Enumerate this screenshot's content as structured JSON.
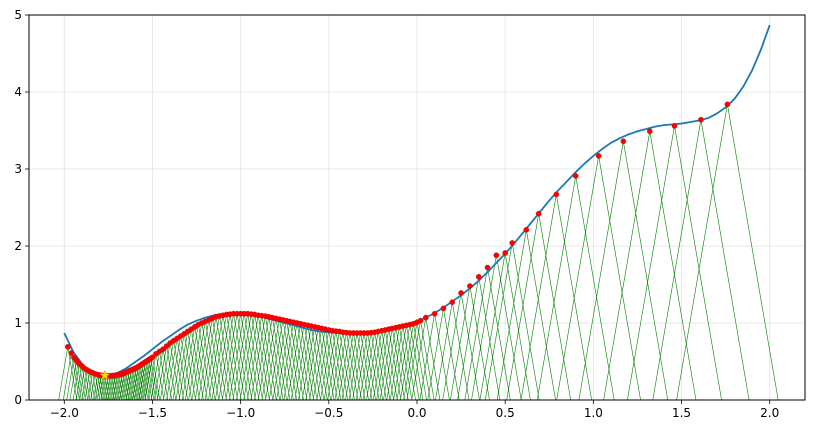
{
  "chart_data": {
    "type": "line",
    "title": "",
    "xlabel": "",
    "ylabel": "",
    "xlim": [
      -2.2,
      2.2
    ],
    "ylim": [
      0,
      5
    ],
    "grid": true,
    "legend": "none",
    "x_ticks": [
      -2.0,
      -1.5,
      -1.0,
      -0.5,
      0.0,
      0.5,
      1.0,
      1.5,
      2.0
    ],
    "x_tick_labels": [
      "−2.0",
      "−1.5",
      "−1.0",
      "−0.5",
      "0.0",
      "0.5",
      "1.0",
      "1.5",
      "2.0"
    ],
    "y_ticks": [
      0,
      1,
      2,
      3,
      4,
      5
    ],
    "y_tick_labels": [
      "0",
      "1",
      "2",
      "3",
      "4",
      "5"
    ],
    "colors": {
      "curve": "#1f77b4",
      "points": "#ff0000",
      "point_edge": "#cc0000",
      "lines": "#008000",
      "star": "#ffd700",
      "grid": "#b0b0b0"
    },
    "series": [
      {
        "kind": "curve",
        "x": [
          -2.0,
          -1.95,
          -1.9,
          -1.85,
          -1.8,
          -1.75,
          -1.7,
          -1.65,
          -1.6,
          -1.55,
          -1.5,
          -1.45,
          -1.4,
          -1.35,
          -1.3,
          -1.25,
          -1.2,
          -1.15,
          -1.1,
          -1.05,
          -1.0,
          -0.95,
          -0.9,
          -0.85,
          -0.8,
          -0.75,
          -0.7,
          -0.65,
          -0.6,
          -0.55,
          -0.5,
          -0.45,
          -0.4,
          -0.35,
          -0.3,
          -0.25,
          -0.2,
          -0.15,
          -0.1,
          -0.05,
          0.0,
          0.05,
          0.1,
          0.15,
          0.2,
          0.25,
          0.3,
          0.35,
          0.4,
          0.45,
          0.5,
          0.55,
          0.6,
          0.65,
          0.7,
          0.75,
          0.8,
          0.85,
          0.9,
          0.95,
          1.0,
          1.05,
          1.1,
          1.15,
          1.2,
          1.25,
          1.3,
          1.35,
          1.4,
          1.45,
          1.5,
          1.55,
          1.6,
          1.65,
          1.7,
          1.75,
          1.8,
          1.85,
          1.9,
          1.95,
          2.0
        ],
        "y": [
          0.87,
          0.63,
          0.47,
          0.36,
          0.32,
          0.32,
          0.35,
          0.41,
          0.49,
          0.57,
          0.66,
          0.75,
          0.83,
          0.91,
          0.98,
          1.03,
          1.07,
          1.1,
          1.12,
          1.12,
          1.12,
          1.11,
          1.09,
          1.06,
          1.03,
          1.0,
          0.97,
          0.94,
          0.91,
          0.89,
          0.88,
          0.87,
          0.87,
          0.87,
          0.87,
          0.88,
          0.9,
          0.92,
          0.95,
          0.98,
          1.02,
          1.07,
          1.13,
          1.2,
          1.28,
          1.36,
          1.45,
          1.55,
          1.66,
          1.78,
          1.9,
          2.03,
          2.17,
          2.31,
          2.45,
          2.59,
          2.72,
          2.84,
          2.96,
          3.07,
          3.17,
          3.26,
          3.34,
          3.4,
          3.45,
          3.49,
          3.52,
          3.55,
          3.57,
          3.58,
          3.59,
          3.61,
          3.63,
          3.66,
          3.72,
          3.8,
          3.91,
          4.07,
          4.28,
          4.55,
          4.87
        ]
      },
      {
        "kind": "iterates",
        "marker": "red dots",
        "x": [
          -1.98,
          -1.96,
          -1.945,
          -1.93,
          -1.915,
          -1.9,
          -1.885,
          -1.87,
          -1.855,
          -1.84,
          -1.825,
          -1.81,
          -1.8,
          -1.79,
          -1.78,
          -1.77,
          -1.76,
          -1.75,
          -1.74,
          -1.73,
          -1.72,
          -1.71,
          -1.7,
          -1.69,
          -1.68,
          -1.67,
          -1.66,
          -1.65,
          -1.64,
          -1.63,
          -1.62,
          -1.61,
          -1.6,
          -1.59,
          -1.58,
          -1.57,
          -1.56,
          -1.55,
          -1.54,
          -1.53,
          -1.52,
          -1.51,
          -1.5,
          -1.48,
          -1.46,
          -1.44,
          -1.42,
          -1.4,
          -1.38,
          -1.36,
          -1.34,
          -1.32,
          -1.3,
          -1.28,
          -1.26,
          -1.24,
          -1.22,
          -1.2,
          -1.18,
          -1.16,
          -1.14,
          -1.12,
          -1.1,
          -1.08,
          -1.06,
          -1.04,
          -1.02,
          -1.0,
          -0.98,
          -0.96,
          -0.94,
          -0.92,
          -0.9,
          -0.88,
          -0.86,
          -0.84,
          -0.82,
          -0.8,
          -0.78,
          -0.76,
          -0.74,
          -0.72,
          -0.7,
          -0.68,
          -0.66,
          -0.64,
          -0.62,
          -0.6,
          -0.58,
          -0.56,
          -0.54,
          -0.52,
          -0.5,
          -0.48,
          -0.46,
          -0.44,
          -0.42,
          -0.4,
          -0.38,
          -0.36,
          -0.34,
          -0.32,
          -0.3,
          -0.28,
          -0.26,
          -0.24,
          -0.22,
          -0.2,
          -0.18,
          -0.16,
          -0.14,
          -0.12,
          -0.1,
          -0.08,
          -0.06,
          -0.04,
          -0.02,
          0.0,
          0.02,
          0.05,
          0.1,
          0.15,
          0.2,
          0.25,
          0.3,
          0.35,
          0.4,
          0.45,
          0.5,
          0.54,
          0.62,
          0.69,
          0.79,
          0.9,
          1.03,
          1.17,
          1.32,
          1.46,
          1.61,
          1.76
        ],
        "y": [
          0.69,
          0.61,
          0.55,
          0.51,
          0.47,
          0.44,
          0.41,
          0.39,
          0.37,
          0.355,
          0.34,
          0.33,
          0.325,
          0.32,
          0.318,
          0.316,
          0.315,
          0.315,
          0.315,
          0.316,
          0.318,
          0.32,
          0.325,
          0.33,
          0.336,
          0.342,
          0.35,
          0.36,
          0.37,
          0.38,
          0.39,
          0.4,
          0.41,
          0.42,
          0.435,
          0.45,
          0.465,
          0.48,
          0.495,
          0.51,
          0.525,
          0.54,
          0.555,
          0.6,
          0.63,
          0.66,
          0.7,
          0.74,
          0.77,
          0.8,
          0.83,
          0.86,
          0.89,
          0.92,
          0.95,
          0.98,
          1.0,
          1.02,
          1.04,
          1.06,
          1.08,
          1.09,
          1.1,
          1.11,
          1.115,
          1.12,
          1.12,
          1.12,
          1.12,
          1.12,
          1.115,
          1.11,
          1.1,
          1.095,
          1.09,
          1.08,
          1.07,
          1.06,
          1.05,
          1.04,
          1.03,
          1.02,
          1.01,
          1.0,
          0.99,
          0.98,
          0.97,
          0.96,
          0.95,
          0.94,
          0.93,
          0.92,
          0.91,
          0.9,
          0.895,
          0.89,
          0.88,
          0.875,
          0.87,
          0.87,
          0.87,
          0.87,
          0.87,
          0.87,
          0.875,
          0.88,
          0.89,
          0.9,
          0.91,
          0.92,
          0.93,
          0.94,
          0.95,
          0.96,
          0.97,
          0.98,
          0.99,
          1.01,
          1.03,
          1.07,
          1.12,
          1.19,
          1.27,
          1.39,
          1.48,
          1.6,
          1.72,
          1.88,
          1.91,
          2.04,
          2.21,
          2.42,
          2.67,
          2.91,
          3.17,
          3.36,
          3.49,
          3.56,
          3.64,
          3.84
        ]
      },
      {
        "kind": "minimum",
        "marker": "yellow star",
        "x": -1.77,
        "y": 0.32
      }
    ]
  }
}
